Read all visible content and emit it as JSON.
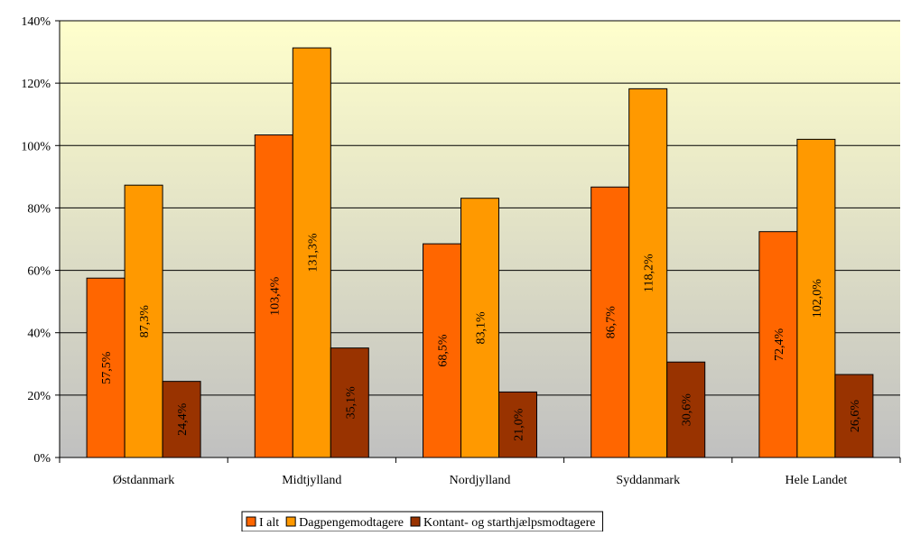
{
  "chart_data": {
    "type": "bar",
    "title": "",
    "xlabel": "",
    "ylabel": "",
    "categories": [
      "Østdanmark",
      "Midtjylland",
      "Nordjylland",
      "Syddanmark",
      "Hele Landet"
    ],
    "series": [
      {
        "name": "I alt",
        "color": "#ff6600",
        "values": [
          57.5,
          103.4,
          68.5,
          86.7,
          72.4
        ],
        "labels": [
          "57,5%",
          "103,4%",
          "68,5%",
          "86,7%",
          "72,4%"
        ]
      },
      {
        "name": "Dagpengemodtagere",
        "color": "#ff9900",
        "values": [
          87.3,
          131.3,
          83.1,
          118.2,
          102.0
        ],
        "labels": [
          "87,3%",
          "131,3%",
          "83,1%",
          "118,2%",
          "102,0%"
        ]
      },
      {
        "name": "Kontant- og starthjælpsmodtagere",
        "color": "#993300",
        "values": [
          24.4,
          35.1,
          21.0,
          30.6,
          26.6
        ],
        "labels": [
          "24,4%",
          "35,1%",
          "21,0%",
          "30,6%",
          "26,6%"
        ]
      }
    ],
    "ylim": [
      0,
      140
    ],
    "yticks": [
      0,
      20,
      40,
      60,
      80,
      100,
      120,
      140
    ],
    "ytick_labels": [
      "0%",
      "20%",
      "40%",
      "60%",
      "80%",
      "100%",
      "120%",
      "140%"
    ],
    "grid": true,
    "legend_position": "bottom-center",
    "background_gradient": [
      "#ffffcc",
      "#c0c0c0"
    ]
  }
}
